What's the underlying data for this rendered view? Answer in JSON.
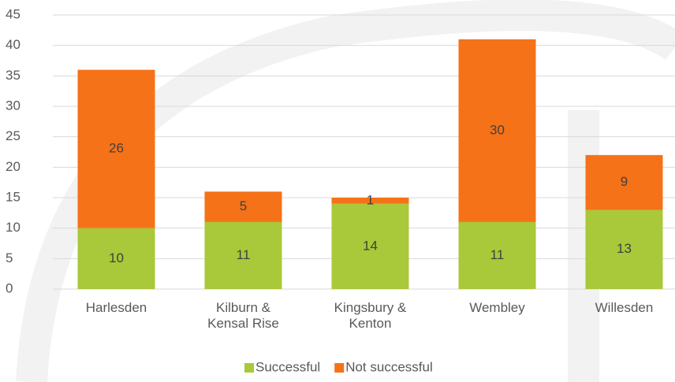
{
  "chart_data": {
    "type": "stacked_bar",
    "categories": [
      "Harlesden",
      "Kilburn & Kensal Rise",
      "Kingsbury & Kenton",
      "Wembley",
      "Willesden"
    ],
    "series": [
      {
        "name": "Successful",
        "color": "#a9c83a",
        "values": [
          10,
          11,
          14,
          11,
          13
        ]
      },
      {
        "name": "Not successful",
        "color": "#f57218",
        "values": [
          26,
          5,
          1,
          30,
          9
        ]
      }
    ],
    "ylim": [
      0,
      45
    ],
    "yticks": [
      0,
      5,
      10,
      15,
      20,
      25,
      30,
      35,
      40,
      45
    ],
    "grid": true,
    "legend": "bottom"
  }
}
